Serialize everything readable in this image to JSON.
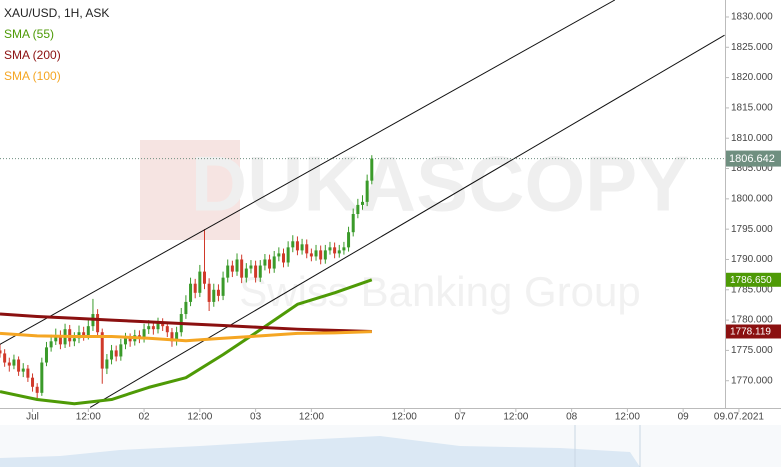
{
  "chart_data": {
    "type": "candlestick",
    "title": "XAU/USD, 1H, ASK",
    "watermark": {
      "brand": "DUKASCOPY",
      "tagline": "Swiss Banking Group"
    },
    "up_color": "#3a9a2a",
    "down_color": "#d0392a",
    "x": [
      -7,
      -6,
      -5,
      -4,
      -3,
      -2,
      -1,
      0,
      1,
      2,
      3,
      4,
      5,
      6,
      7,
      8,
      9,
      10,
      11,
      12,
      13,
      14,
      15,
      16,
      17,
      18,
      19,
      20,
      21,
      22,
      23,
      24,
      25,
      26,
      27,
      28,
      29,
      30,
      31,
      32,
      33,
      34,
      35,
      36,
      37,
      38,
      39,
      40,
      41,
      42,
      43,
      44,
      45,
      46,
      47,
      48,
      49,
      50,
      51,
      52,
      53,
      54,
      55,
      56,
      57,
      58,
      59,
      60,
      61,
      62,
      63,
      64,
      65,
      66,
      67,
      68,
      69,
      70,
      71,
      72,
      73
    ],
    "open": [
      1775,
      1774.5,
      1773,
      1772.5,
      1773.5,
      1771.5,
      1772,
      1770.5,
      1769,
      1768,
      1773,
      1775.5,
      1776.5,
      1777.5,
      1776,
      1778.5,
      1776.5,
      1777,
      1778,
      1777.5,
      1779,
      1781,
      1778,
      1772,
      1773.5,
      1775,
      1774,
      1776,
      1777,
      1776.5,
      1777.5,
      1777,
      1778.5,
      1779,
      1778.5,
      1779.5,
      1779,
      1778,
      1776.5,
      1778,
      1781,
      1783,
      1786,
      1784.5,
      1788,
      1786,
      1783,
      1785,
      1784,
      1787,
      1789,
      1788,
      1790,
      1787,
      1788.5,
      1789,
      1787,
      1789,
      1790,
      1788.5,
      1790.5,
      1791,
      1789.5,
      1792,
      1793,
      1791.5,
      1792.5,
      1791,
      1790.5,
      1791.5,
      1790,
      1791.5,
      1792,
      1791,
      1791.5,
      1792,
      1794.5,
      1797.5,
      1799,
      1799.5,
      1803
    ],
    "high": [
      1776,
      1775.2,
      1773.8,
      1774.3,
      1774,
      1772.9,
      1772.6,
      1771.2,
      1769.6,
      1773.8,
      1776.4,
      1777.6,
      1778.6,
      1778.3,
      1779.4,
      1779.2,
      1778,
      1779.1,
      1778.9,
      1780,
      1783.5,
      1781.8,
      1778.6,
      1774.4,
      1775.9,
      1775.8,
      1776.9,
      1777.9,
      1777.8,
      1778.4,
      1778.3,
      1779.4,
      1780,
      1779.8,
      1780.4,
      1780.3,
      1779.7,
      1778.7,
      1778.9,
      1782,
      1784.1,
      1787,
      1786.8,
      1789.1,
      1795,
      1786.9,
      1786,
      1785.9,
      1788,
      1790,
      1789.8,
      1791,
      1790.8,
      1789.4,
      1789.9,
      1789.8,
      1789.9,
      1790.9,
      1790.8,
      1791.4,
      1792,
      1791.8,
      1793,
      1794,
      1793.8,
      1793.4,
      1793.3,
      1791.8,
      1792.4,
      1792.3,
      1792.4,
      1792.9,
      1792.8,
      1792.4,
      1792.9,
      1795.4,
      1798.4,
      1800,
      1800.6,
      1804,
      1807.2
    ],
    "low": [
      1773.8,
      1772.3,
      1771.5,
      1771.9,
      1770.8,
      1770.6,
      1769.8,
      1768.2,
      1767,
      1767.5,
      1772.4,
      1774.8,
      1775.9,
      1775.2,
      1775.4,
      1775.6,
      1775.7,
      1776.2,
      1776.6,
      1776.8,
      1778.2,
      1777.1,
      1769.5,
      1771.1,
      1772.7,
      1773.2,
      1773.3,
      1775.2,
      1775.6,
      1775.8,
      1776.2,
      1776.3,
      1777.7,
      1777.6,
      1777.8,
      1778.2,
      1777.2,
      1775.6,
      1775.8,
      1777.3,
      1780.2,
      1782.3,
      1783.6,
      1783.8,
      1785.1,
      1781.5,
      1782.2,
      1783.1,
      1783.3,
      1786.2,
      1787.1,
      1787.3,
      1786.1,
      1786.2,
      1787.7,
      1786.2,
      1786.3,
      1788.2,
      1787.7,
      1787.8,
      1789.7,
      1788.7,
      1788.8,
      1791.2,
      1790.7,
      1790.8,
      1790.2,
      1789.7,
      1789.8,
      1789.2,
      1789.3,
      1790.8,
      1790.2,
      1790.3,
      1790.8,
      1791.3,
      1793.8,
      1796.8,
      1798.2,
      1798.8,
      1802.4
    ],
    "close": [
      1774.5,
      1773,
      1772.5,
      1773.5,
      1771.5,
      1772,
      1770.5,
      1769,
      1768,
      1773,
      1775.5,
      1776.5,
      1777.5,
      1776,
      1778.5,
      1776.5,
      1777,
      1778,
      1777.5,
      1779,
      1781,
      1778,
      1772,
      1773.5,
      1775,
      1774,
      1776,
      1777,
      1776.5,
      1777.5,
      1777,
      1778.5,
      1779,
      1778.5,
      1779.5,
      1779,
      1778,
      1776.5,
      1778,
      1781,
      1783,
      1786,
      1784.5,
      1788,
      1786,
      1783,
      1785,
      1784,
      1787,
      1789,
      1788,
      1790,
      1787,
      1788.5,
      1789,
      1787,
      1789,
      1790,
      1788.5,
      1790.5,
      1791,
      1789.5,
      1792,
      1793,
      1791.5,
      1792.5,
      1791,
      1790.5,
      1791.5,
      1790,
      1791.5,
      1792,
      1791,
      1791.5,
      1792,
      1794.5,
      1797.5,
      1799,
      1799.5,
      1803,
      1806.642
    ],
    "last_price": 1806.642,
    "last_price_color": "#6f8f80",
    "series": [
      {
        "name": "SMA (55)",
        "color": "#4e9a06",
        "x": [
          -7,
          1,
          9,
          17,
          25,
          33,
          41,
          49,
          57,
          65,
          73
        ],
        "values": [
          1768.2,
          1766.9,
          1766.2,
          1766.9,
          1768.9,
          1770.5,
          1774.3,
          1778.4,
          1782.6,
          1784.5,
          1786.65
        ],
        "value_labels": [
          null,
          null,
          null,
          null,
          null,
          null,
          null,
          null,
          null,
          null,
          "1786.650"
        ]
      },
      {
        "name": "SMA (200)",
        "color": "#8b1010",
        "x": [
          -7,
          1,
          9,
          17,
          25,
          33,
          41,
          49,
          57,
          65,
          73
        ],
        "values": [
          1781,
          1780.6,
          1780.3,
          1780,
          1779.7,
          1779.4,
          1779.1,
          1778.8,
          1778.5,
          1778.3,
          1778.119
        ],
        "value_labels": [
          null,
          null,
          null,
          null,
          null,
          null,
          null,
          null,
          null,
          null,
          "1778.119"
        ]
      },
      {
        "name": "SMA (100)",
        "color": "#f5a623",
        "x": [
          -7,
          1,
          9,
          17,
          25,
          33,
          41,
          49,
          57,
          65,
          73
        ],
        "values": [
          1777.8,
          1777.4,
          1777.3,
          1777.3,
          1777,
          1776.6,
          1777,
          1777.4,
          1777.8,
          1777.9,
          1778.1
        ]
      }
    ],
    "channels": [
      {
        "x": [
          -7,
          125.3
        ],
        "values": [
          1776,
          1832.8
        ]
      },
      {
        "x": [
          12.4,
          148.9
        ],
        "values": [
          1765.6,
          1827
        ]
      }
    ],
    "xlim": [
      -7,
      149
    ],
    "ylim": [
      1765.5,
      1832.8
    ],
    "xticks": [
      {
        "value": 0,
        "label": "Jul"
      },
      {
        "value": 12,
        "label": "12:00"
      },
      {
        "value": 24,
        "label": "02"
      },
      {
        "value": 36,
        "label": "12:00"
      },
      {
        "value": 48,
        "label": "03"
      },
      {
        "value": 60,
        "label": "12:00"
      },
      {
        "value": 80,
        "label": "12:00"
      },
      {
        "value": 92,
        "label": "07"
      },
      {
        "value": 104,
        "label": "12:00"
      },
      {
        "value": 116,
        "label": "08"
      },
      {
        "value": 128,
        "label": "12:00"
      },
      {
        "value": 140,
        "label": "09"
      },
      {
        "value": 152,
        "label": "09.07.2021"
      }
    ],
    "yticks": [
      {
        "value": 1770,
        "label": "1770.000"
      },
      {
        "value": 1775,
        "label": "1775.000"
      },
      {
        "value": 1780,
        "label": "1780.000"
      },
      {
        "value": 1785,
        "label": "1785.000"
      },
      {
        "value": 1790,
        "label": "1790.000"
      },
      {
        "value": 1795,
        "label": "1795.000"
      },
      {
        "value": 1800,
        "label": "1800.000"
      },
      {
        "value": 1805,
        "label": "1805.000"
      },
      {
        "value": 1810,
        "label": "1810.000"
      },
      {
        "value": 1815,
        "label": "1815.000"
      },
      {
        "value": 1820,
        "label": "1820.000"
      },
      {
        "value": 1825,
        "label": "1825.000"
      },
      {
        "value": 1830,
        "label": "1830.000"
      }
    ]
  }
}
